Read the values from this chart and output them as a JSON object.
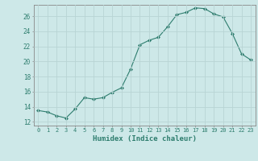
{
  "x": [
    0,
    1,
    2,
    3,
    4,
    5,
    6,
    7,
    8,
    9,
    10,
    11,
    12,
    13,
    14,
    15,
    16,
    17,
    18,
    19,
    20,
    21,
    22,
    23
  ],
  "y": [
    13.5,
    13.3,
    12.8,
    12.5,
    13.7,
    15.2,
    15.0,
    15.2,
    15.9,
    16.5,
    19.0,
    22.2,
    22.8,
    23.2,
    24.6,
    26.2,
    26.5,
    27.1,
    27.0,
    26.3,
    25.9,
    23.7,
    21.0,
    20.2
  ],
  "line_color": "#2e7d6e",
  "marker": "D",
  "marker_size": 2,
  "bg_color": "#cde8e8",
  "grid_color": "#b8d4d4",
  "xlabel": "Humidex (Indice chaleur)",
  "xlim": [
    -0.5,
    23.5
  ],
  "ylim": [
    11.5,
    27.5
  ],
  "yticks": [
    12,
    14,
    16,
    18,
    20,
    22,
    24,
    26
  ],
  "xticks": [
    0,
    1,
    2,
    3,
    4,
    5,
    6,
    7,
    8,
    9,
    10,
    11,
    12,
    13,
    14,
    15,
    16,
    17,
    18,
    19,
    20,
    21,
    22,
    23
  ]
}
